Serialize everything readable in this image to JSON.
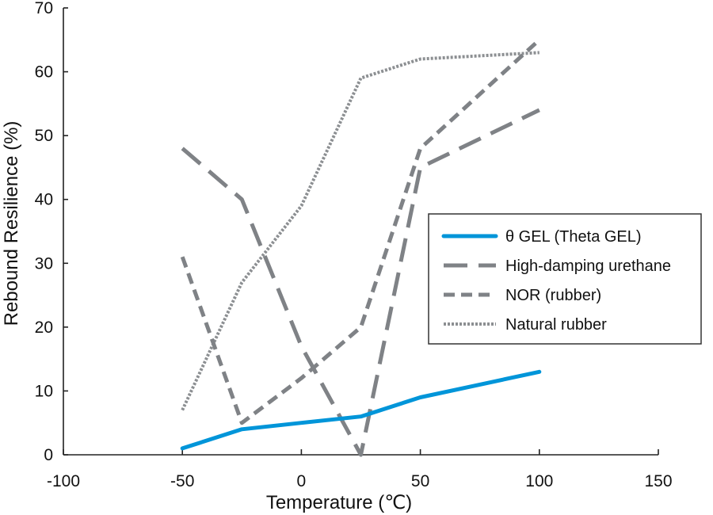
{
  "chart_data": {
    "type": "line",
    "title": "",
    "xlabel": "Temperature (℃)",
    "ylabel": "Rebound Resilience (%)",
    "xlim": [
      -100,
      150
    ],
    "ylim": [
      0,
      70
    ],
    "xticks": [
      -100,
      -50,
      0,
      50,
      100,
      150
    ],
    "yticks": [
      0,
      10,
      20,
      30,
      40,
      50,
      60,
      70
    ],
    "grid": false,
    "legend_position": "right-middle",
    "series": [
      {
        "name": "θ GEL (Theta GEL)",
        "color": "#0095d9",
        "line_style": "solid",
        "x": [
          -50,
          -25,
          0,
          25,
          50,
          75,
          100
        ],
        "y": [
          1,
          4,
          5,
          6,
          9,
          11,
          13
        ]
      },
      {
        "name": "High-damping urethane",
        "color": "#7f8286",
        "line_style": "long-dash",
        "x": [
          -50,
          -25,
          0,
          25,
          50,
          100
        ],
        "y": [
          48,
          40,
          17,
          0,
          45,
          54
        ]
      },
      {
        "name": "NOR (rubber)",
        "color": "#7f8286",
        "line_style": "short-dash",
        "x": [
          -50,
          -25,
          0,
          25,
          50,
          100
        ],
        "y": [
          31,
          5,
          12,
          20,
          48,
          65
        ]
      },
      {
        "name": "Natural rubber",
        "color": "#8c8f92",
        "line_style": "dotted",
        "x": [
          -50,
          -25,
          0,
          25,
          50,
          100
        ],
        "y": [
          7,
          27,
          39,
          59,
          62,
          63
        ]
      }
    ]
  }
}
